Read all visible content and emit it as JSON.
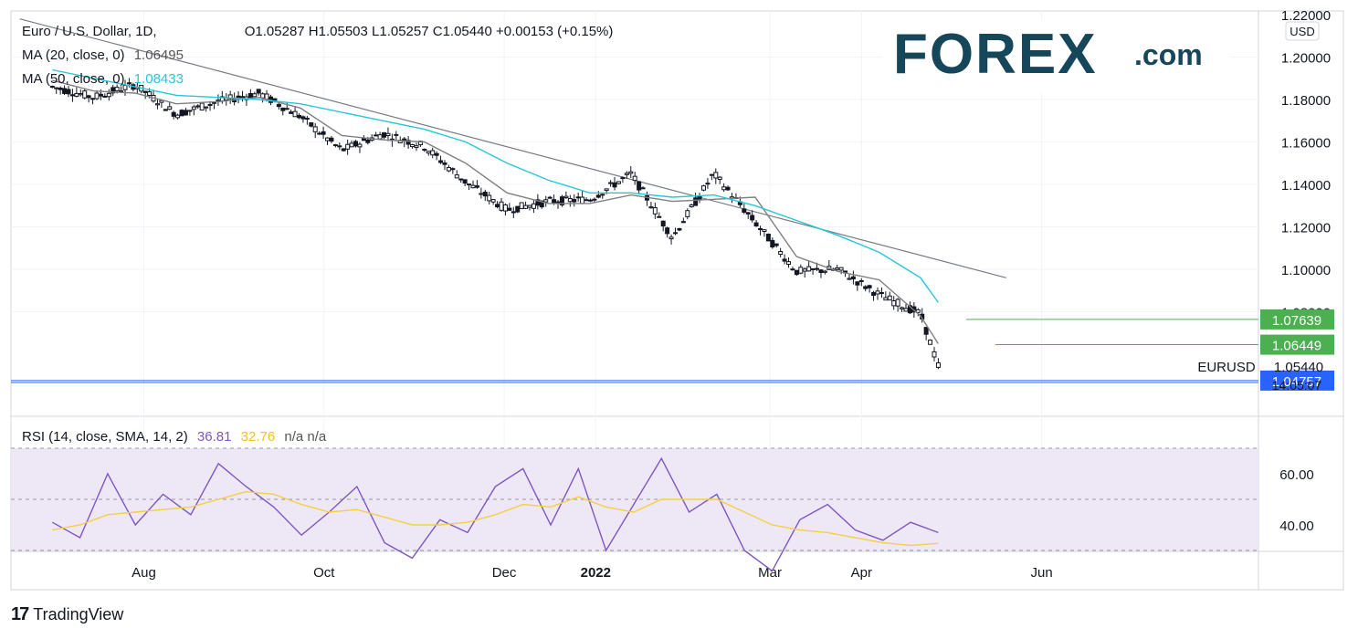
{
  "header": {
    "symbol": "Euro / U.S. Dollar, 1D,",
    "ohlc": "O1.05287 H1.05503 L1.05257 C1.05440 +0.00153 (+0.15%)",
    "ma20_label": "MA (20, close, 0)",
    "ma20_value": "1.06495",
    "ma50_label": "MA (50, close, 0)",
    "ma50_value": "1.08433",
    "rsi_label": "RSI (14, close, SMA, 14, 2)",
    "rsi_value": "36.81",
    "rsi_sma_value": "32.76",
    "rsi_na": "n/a  n/a"
  },
  "logo": {
    "main": "FOREX",
    "suffix": ".com"
  },
  "footer": {
    "brand": "TradingView",
    "mark": "17"
  },
  "price_axis": {
    "currency": "USD",
    "ticks": [
      "1.22000",
      "1.20000",
      "1.18000",
      "1.16000",
      "1.14000",
      "1.12000",
      "1.10000",
      "1.08000"
    ],
    "last_price": "1.05440",
    "countdown": "14:05:07",
    "symbol_label": "EURUSD",
    "levels": [
      "1.07639",
      "1.06449",
      "1.04757"
    ]
  },
  "rsi_axis": {
    "ticks": [
      "60.00",
      "40.00"
    ]
  },
  "time_axis": {
    "labels": [
      "Aug",
      "Oct",
      "Dec",
      "2022",
      "Mar",
      "Apr",
      "Jun"
    ]
  },
  "colors": {
    "candle": "#131722",
    "ma20": "#808080",
    "ma50": "#26c6da",
    "trendline": "#787b86",
    "level_line": "#4caf50",
    "level_badge": "#4caf50",
    "support_line": "#2962ff",
    "support_badge": "#2962ff",
    "rsi_line": "#7e57c2",
    "rsi_sma": "#f5d040",
    "rsi_band": "#ede7f6",
    "logo_text": "#16465a",
    "logo_accent": "#4caf50"
  },
  "chart_data": {
    "type": "line",
    "title": "Euro / U.S. Dollar, 1D",
    "ylabel": "USD",
    "ylim": [
      1.04,
      1.225
    ],
    "rsi_ylim": [
      20,
      80
    ],
    "x": [
      "2021-07-01",
      "2021-07-15",
      "2021-07-29",
      "2021-08-12",
      "2021-08-26",
      "2021-09-09",
      "2021-09-23",
      "2021-10-07",
      "2021-10-21",
      "2021-11-04",
      "2021-11-18",
      "2021-12-02",
      "2021-12-16",
      "2021-12-30",
      "2022-01-13",
      "2022-01-27",
      "2022-02-10",
      "2022-02-24",
      "2022-03-10",
      "2022-03-24",
      "2022-04-07",
      "2022-04-21",
      "2022-04-27"
    ],
    "series": [
      {
        "name": "EURUSD",
        "values": [
          1.186,
          1.181,
          1.187,
          1.173,
          1.179,
          1.183,
          1.172,
          1.156,
          1.164,
          1.158,
          1.141,
          1.128,
          1.132,
          1.133,
          1.145,
          1.115,
          1.145,
          1.122,
          1.099,
          1.1,
          1.088,
          1.079,
          1.0544
        ]
      },
      {
        "name": "MA (20, close, 0)",
        "values": [
          1.189,
          1.184,
          1.183,
          1.178,
          1.179,
          1.181,
          1.176,
          1.163,
          1.161,
          1.16,
          1.15,
          1.136,
          1.131,
          1.131,
          1.135,
          1.132,
          1.133,
          1.134,
          1.106,
          1.099,
          1.095,
          1.078,
          1.06495
        ]
      },
      {
        "name": "MA (50, close, 0)",
        "values": [
          1.194,
          1.19,
          1.186,
          1.182,
          1.181,
          1.18,
          1.178,
          1.174,
          1.17,
          1.166,
          1.16,
          1.15,
          1.142,
          1.136,
          1.136,
          1.134,
          1.135,
          1.13,
          1.123,
          1.116,
          1.108,
          1.096,
          1.08433
        ]
      }
    ],
    "rsi": {
      "values": [
        41,
        35,
        60,
        40,
        52,
        44,
        64,
        55,
        47,
        36,
        45,
        55,
        33,
        27,
        42,
        37,
        55,
        62,
        40,
        62,
        30,
        48,
        66,
        45,
        52,
        30,
        22,
        42,
        48,
        38,
        34,
        41,
        37
      ],
      "sma": [
        38,
        40,
        44,
        45,
        46,
        47,
        50,
        53,
        52,
        48,
        45,
        46,
        43,
        40,
        40,
        41,
        44,
        48,
        47,
        51,
        47,
        45,
        50,
        50,
        50,
        45,
        40,
        38,
        37,
        35,
        33,
        32,
        32.76
      ]
    },
    "trendline": {
      "from": [
        "2021-06-20",
        1.218
      ],
      "to": [
        "2022-05-20",
        1.096
      ]
    },
    "levels": [
      1.07639,
      1.06449,
      1.04757
    ],
    "grid": true,
    "legend": "top-left"
  }
}
